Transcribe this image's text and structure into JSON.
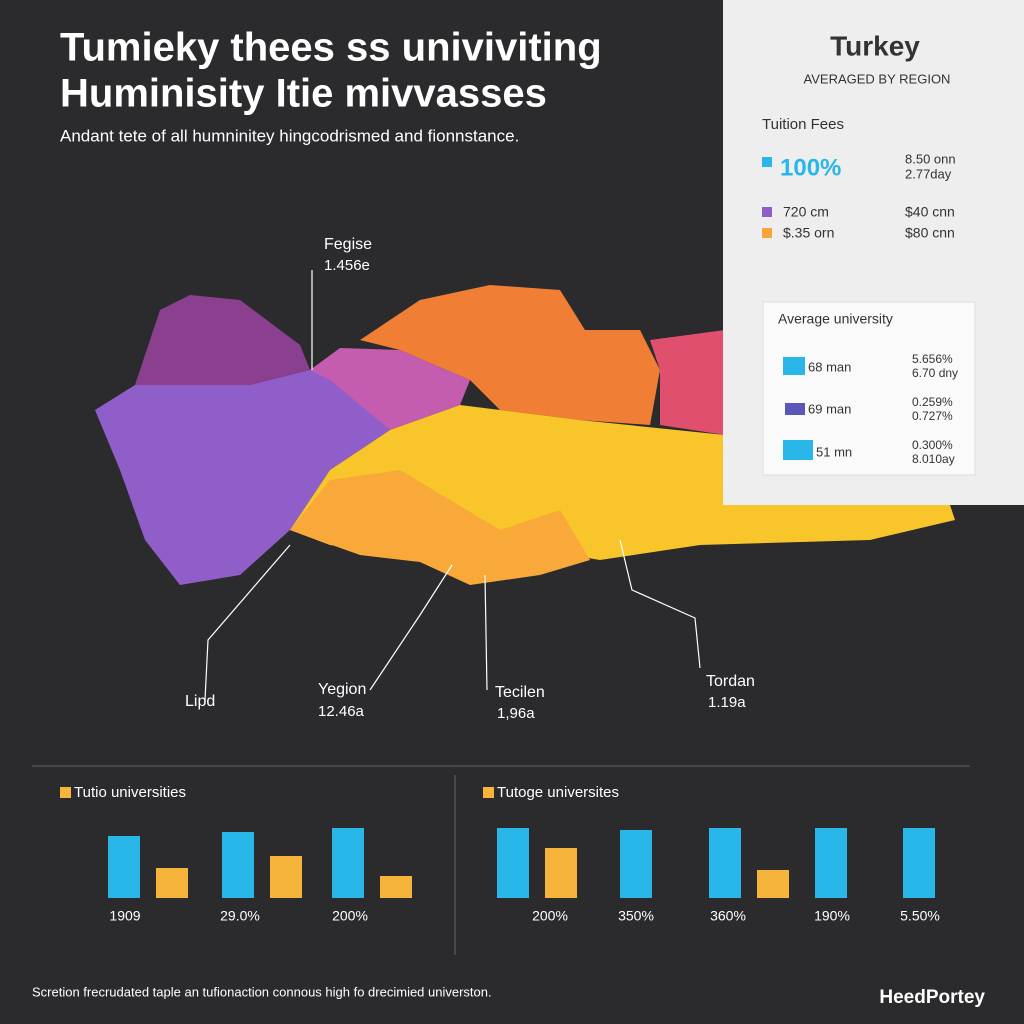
{
  "header": {
    "title_lines": [
      "Tumieky thees ss univiviting",
      "Huminisity Itie mivvasses"
    ],
    "subtitle": "Andant tete of all humninitey hingcodrismed and fionnstance."
  },
  "map": {
    "callouts": [
      {
        "label": "Fegise",
        "value": "1.456e"
      },
      {
        "label": "Lipd"
      },
      {
        "label": "Yegion",
        "value": "12.46a"
      },
      {
        "label": "Tecilen",
        "value": "1,96a"
      },
      {
        "label": "Tordan",
        "value": "1.19a"
      }
    ]
  },
  "panel": {
    "title": "Turkey",
    "subtitle": "AVERAGED BY REGION",
    "section": "Tuition Fees",
    "headline": "100%",
    "headline_notes": [
      "8.50 onn",
      "2.77day"
    ],
    "legend": [
      {
        "label": "720 cm",
        "value": "$40 cnn"
      },
      {
        "label": "$.35 orn",
        "value": "$80 cnn"
      }
    ],
    "box": {
      "title": "Average university",
      "rows": [
        {
          "label": "68 man",
          "values": [
            "5.656%",
            "6.70 dny"
          ]
        },
        {
          "label": "69 man",
          "values": [
            "0.259%",
            "0.727%"
          ]
        },
        {
          "label": "51 mn",
          "values": [
            "0.300%",
            "8.010ay"
          ]
        }
      ]
    }
  },
  "chart_data": [
    {
      "type": "bar",
      "legend_label": "Tutio universities",
      "categories": [
        "1909",
        "29.0%",
        "200%"
      ],
      "ylim": [
        0,
        100
      ],
      "series": [
        {
          "color": "#29b6e8",
          "values": [
            62,
            66,
            70
          ]
        },
        {
          "color": "#f7b43a",
          "values": [
            30,
            42,
            22
          ]
        }
      ]
    },
    {
      "type": "bar",
      "legend_label": "Tutoge universites",
      "categories": [
        "200%",
        "350%",
        "360%",
        "190%",
        "5.50%"
      ],
      "ylim": [
        0,
        100
      ],
      "series": [
        {
          "color": "#29b6e8",
          "values": [
            70,
            68,
            70,
            70,
            70
          ]
        },
        {
          "color": "#f7b43a",
          "values": [
            50,
            null,
            28,
            null,
            null
          ]
        }
      ]
    }
  ],
  "footer": {
    "note": "Scretion frecrudated taple an tufionaction connous high fo drecimied universton.",
    "brand": "HeedPortey"
  }
}
